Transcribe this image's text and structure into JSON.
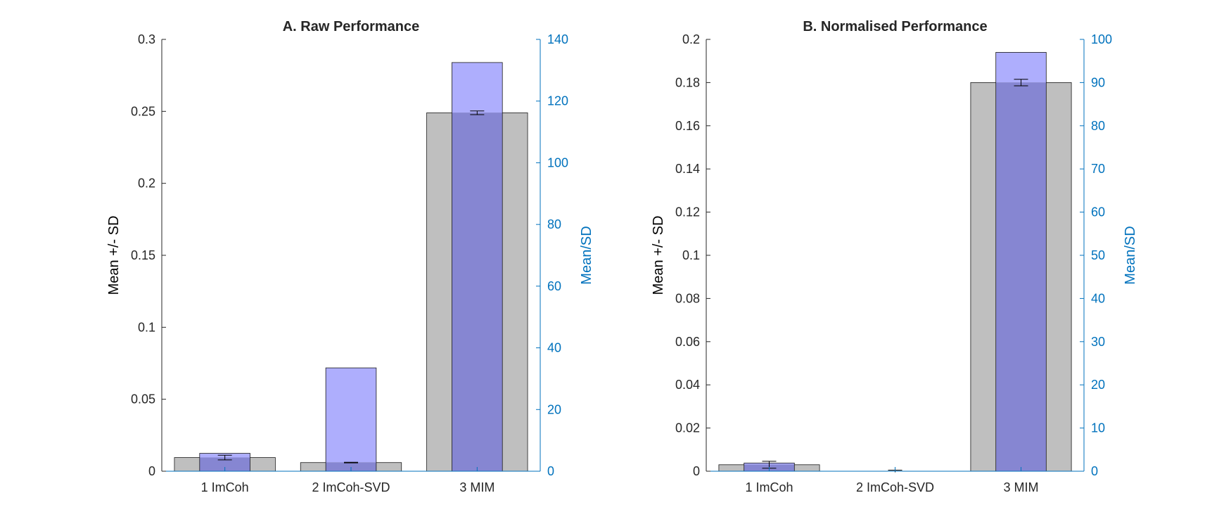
{
  "colors": {
    "gray_bar": "#bfbfbf",
    "blue_bar": "#aeaefd",
    "overlap": "#8686d2",
    "axis_left": "#262626",
    "axis_right": "#0072BD",
    "bar_edge": "#1a1a1a"
  },
  "chart_data": [
    {
      "type": "bar",
      "title": "A. Raw Performance",
      "categories": [
        "1 ImCoh",
        "2 ImCoh-SVD",
        "3 MIM"
      ],
      "ylabel": "Mean +/- SD",
      "ylabel_right": "Mean/SD",
      "ylim": [
        0,
        0.3
      ],
      "ylim_right": [
        0,
        140
      ],
      "yticks": [
        "0",
        "0.05",
        "0.1",
        "0.15",
        "0.2",
        "0.25",
        "0.3"
      ],
      "yticks_right": [
        "0",
        "20",
        "40",
        "60",
        "80",
        "100",
        "120",
        "140"
      ],
      "series": [
        {
          "name": "Mean",
          "axis": "left",
          "values": [
            0.0095,
            0.006,
            0.249
          ],
          "error": [
            0.0016,
            0.0002,
            0.0013
          ]
        },
        {
          "name": "Mean/SD",
          "axis": "right",
          "values": [
            5.8,
            33.5,
            132.5
          ]
        }
      ]
    },
    {
      "type": "bar",
      "title": "B. Normalised Performance",
      "categories": [
        "1 ImCoh",
        "2 ImCoh-SVD",
        "3 MIM"
      ],
      "ylabel": "Mean +/- SD",
      "ylabel_right": "Mean/SD",
      "ylim": [
        0,
        0.2
      ],
      "ylim_right": [
        0,
        100
      ],
      "yticks": [
        "0",
        "0.02",
        "0.04",
        "0.06",
        "0.08",
        "0.1",
        "0.12",
        "0.14",
        "0.16",
        "0.18",
        "0.2"
      ],
      "yticks_right": [
        "0",
        "10",
        "20",
        "30",
        "40",
        "50",
        "60",
        "70",
        "80",
        "90",
        "100"
      ],
      "series": [
        {
          "name": "Mean",
          "axis": "left",
          "values": [
            0.003,
            0.0,
            0.18
          ],
          "error": [
            0.0016,
            0.0005,
            0.0015
          ]
        },
        {
          "name": "Mean/SD",
          "axis": "right",
          "values": [
            1.9,
            0.0,
            97.0
          ]
        }
      ]
    }
  ]
}
